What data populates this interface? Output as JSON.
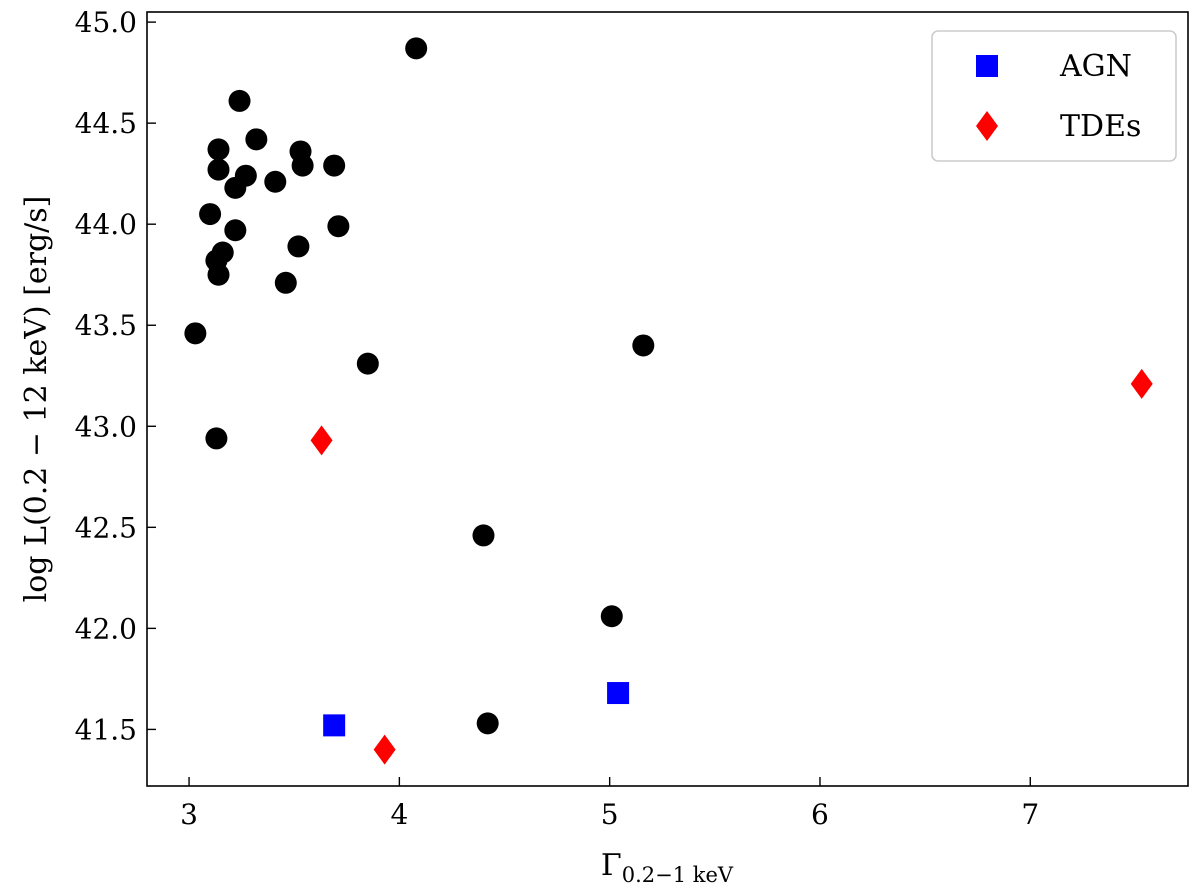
{
  "chart_data": {
    "type": "scatter",
    "xlabel": "Γ",
    "xlabel_subscript": "0.2−1 keV",
    "ylabel": "log L(0.2 − 12 keV) [erg/s]",
    "xlim": [
      2.8,
      7.75
    ],
    "ylim": [
      41.22,
      45.05
    ],
    "xticks": [
      3,
      4,
      5,
      6,
      7
    ],
    "yticks": [
      41.5,
      42.0,
      42.5,
      43.0,
      43.5,
      44.0,
      44.5,
      45.0
    ],
    "xtick_labels": [
      "3",
      "4",
      "5",
      "6",
      "7"
    ],
    "ytick_labels": [
      "41.5",
      "42.0",
      "42.5",
      "43.0",
      "43.5",
      "44.0",
      "44.5",
      "45.0"
    ],
    "grid": false,
    "legend_position": "top-right",
    "series": [
      {
        "marker": "circle",
        "color": "#000000",
        "x": [
          4.08,
          3.24,
          3.32,
          3.14,
          3.53,
          3.14,
          3.54,
          3.69,
          3.27,
          3.22,
          3.41,
          3.1,
          3.71,
          3.22,
          3.52,
          3.16,
          3.13,
          3.14,
          3.46,
          3.03,
          5.16,
          3.85,
          3.13,
          4.4,
          5.01,
          4.42
        ],
        "y": [
          44.87,
          44.61,
          44.42,
          44.37,
          44.36,
          44.27,
          44.29,
          44.29,
          44.24,
          44.18,
          44.21,
          44.05,
          43.99,
          43.97,
          43.89,
          43.86,
          43.82,
          43.75,
          43.71,
          43.46,
          43.4,
          43.31,
          42.94,
          42.46,
          42.06,
          41.53
        ]
      },
      {
        "name": "AGN",
        "marker": "square",
        "color": "#0000ff",
        "x": [
          3.69,
          5.04
        ],
        "y": [
          41.52,
          41.68
        ]
      },
      {
        "name": "TDEs",
        "marker": "diamond",
        "color": "#ff0000",
        "x": [
          3.63,
          3.93,
          7.53
        ],
        "y": [
          42.93,
          41.4,
          43.21
        ]
      }
    ]
  }
}
